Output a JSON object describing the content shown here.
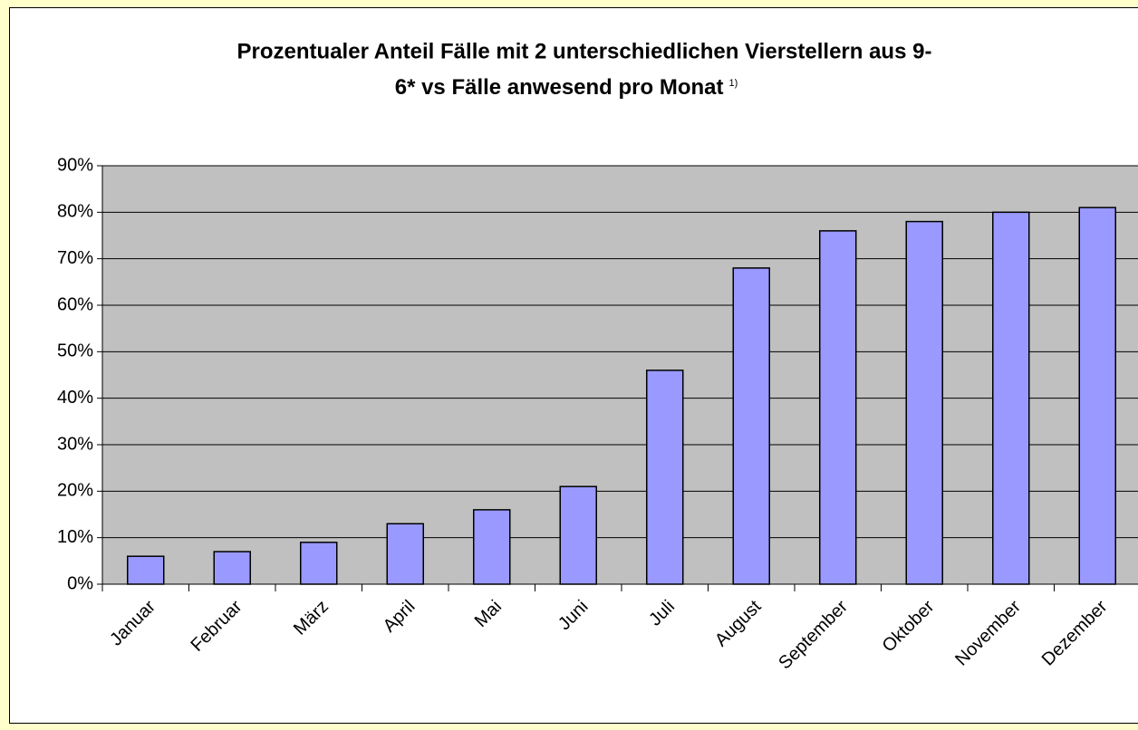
{
  "chart_data": {
    "type": "bar",
    "title_lines": [
      "Prozentualer Anteil Fälle mit 2 unterschiedlichen Vierstellern aus 9-",
      "6* vs Fälle anwesend pro Monat"
    ],
    "title_note": "1)",
    "categories": [
      "Januar",
      "Februar",
      "März",
      "April",
      "Mai",
      "Juni",
      "Juli",
      "August",
      "September",
      "Oktober",
      "November",
      "Dezember"
    ],
    "values": [
      6,
      7,
      9,
      13,
      16,
      21,
      46,
      68,
      76,
      78,
      80,
      81
    ],
    "color": "#9999ff",
    "ylim": [
      0,
      90
    ],
    "yticks": [
      {
        "value": 0,
        "label": "0%"
      },
      {
        "value": 10,
        "label": "10%"
      },
      {
        "value": 20,
        "label": "20%"
      },
      {
        "value": 30,
        "label": "30%"
      },
      {
        "value": 40,
        "label": "40%"
      },
      {
        "value": 50,
        "label": "50%"
      },
      {
        "value": 60,
        "label": "60%"
      },
      {
        "value": 70,
        "label": "70%"
      },
      {
        "value": 80,
        "label": "80%"
      },
      {
        "value": 90,
        "label": "90%"
      }
    ],
    "grid": true
  }
}
